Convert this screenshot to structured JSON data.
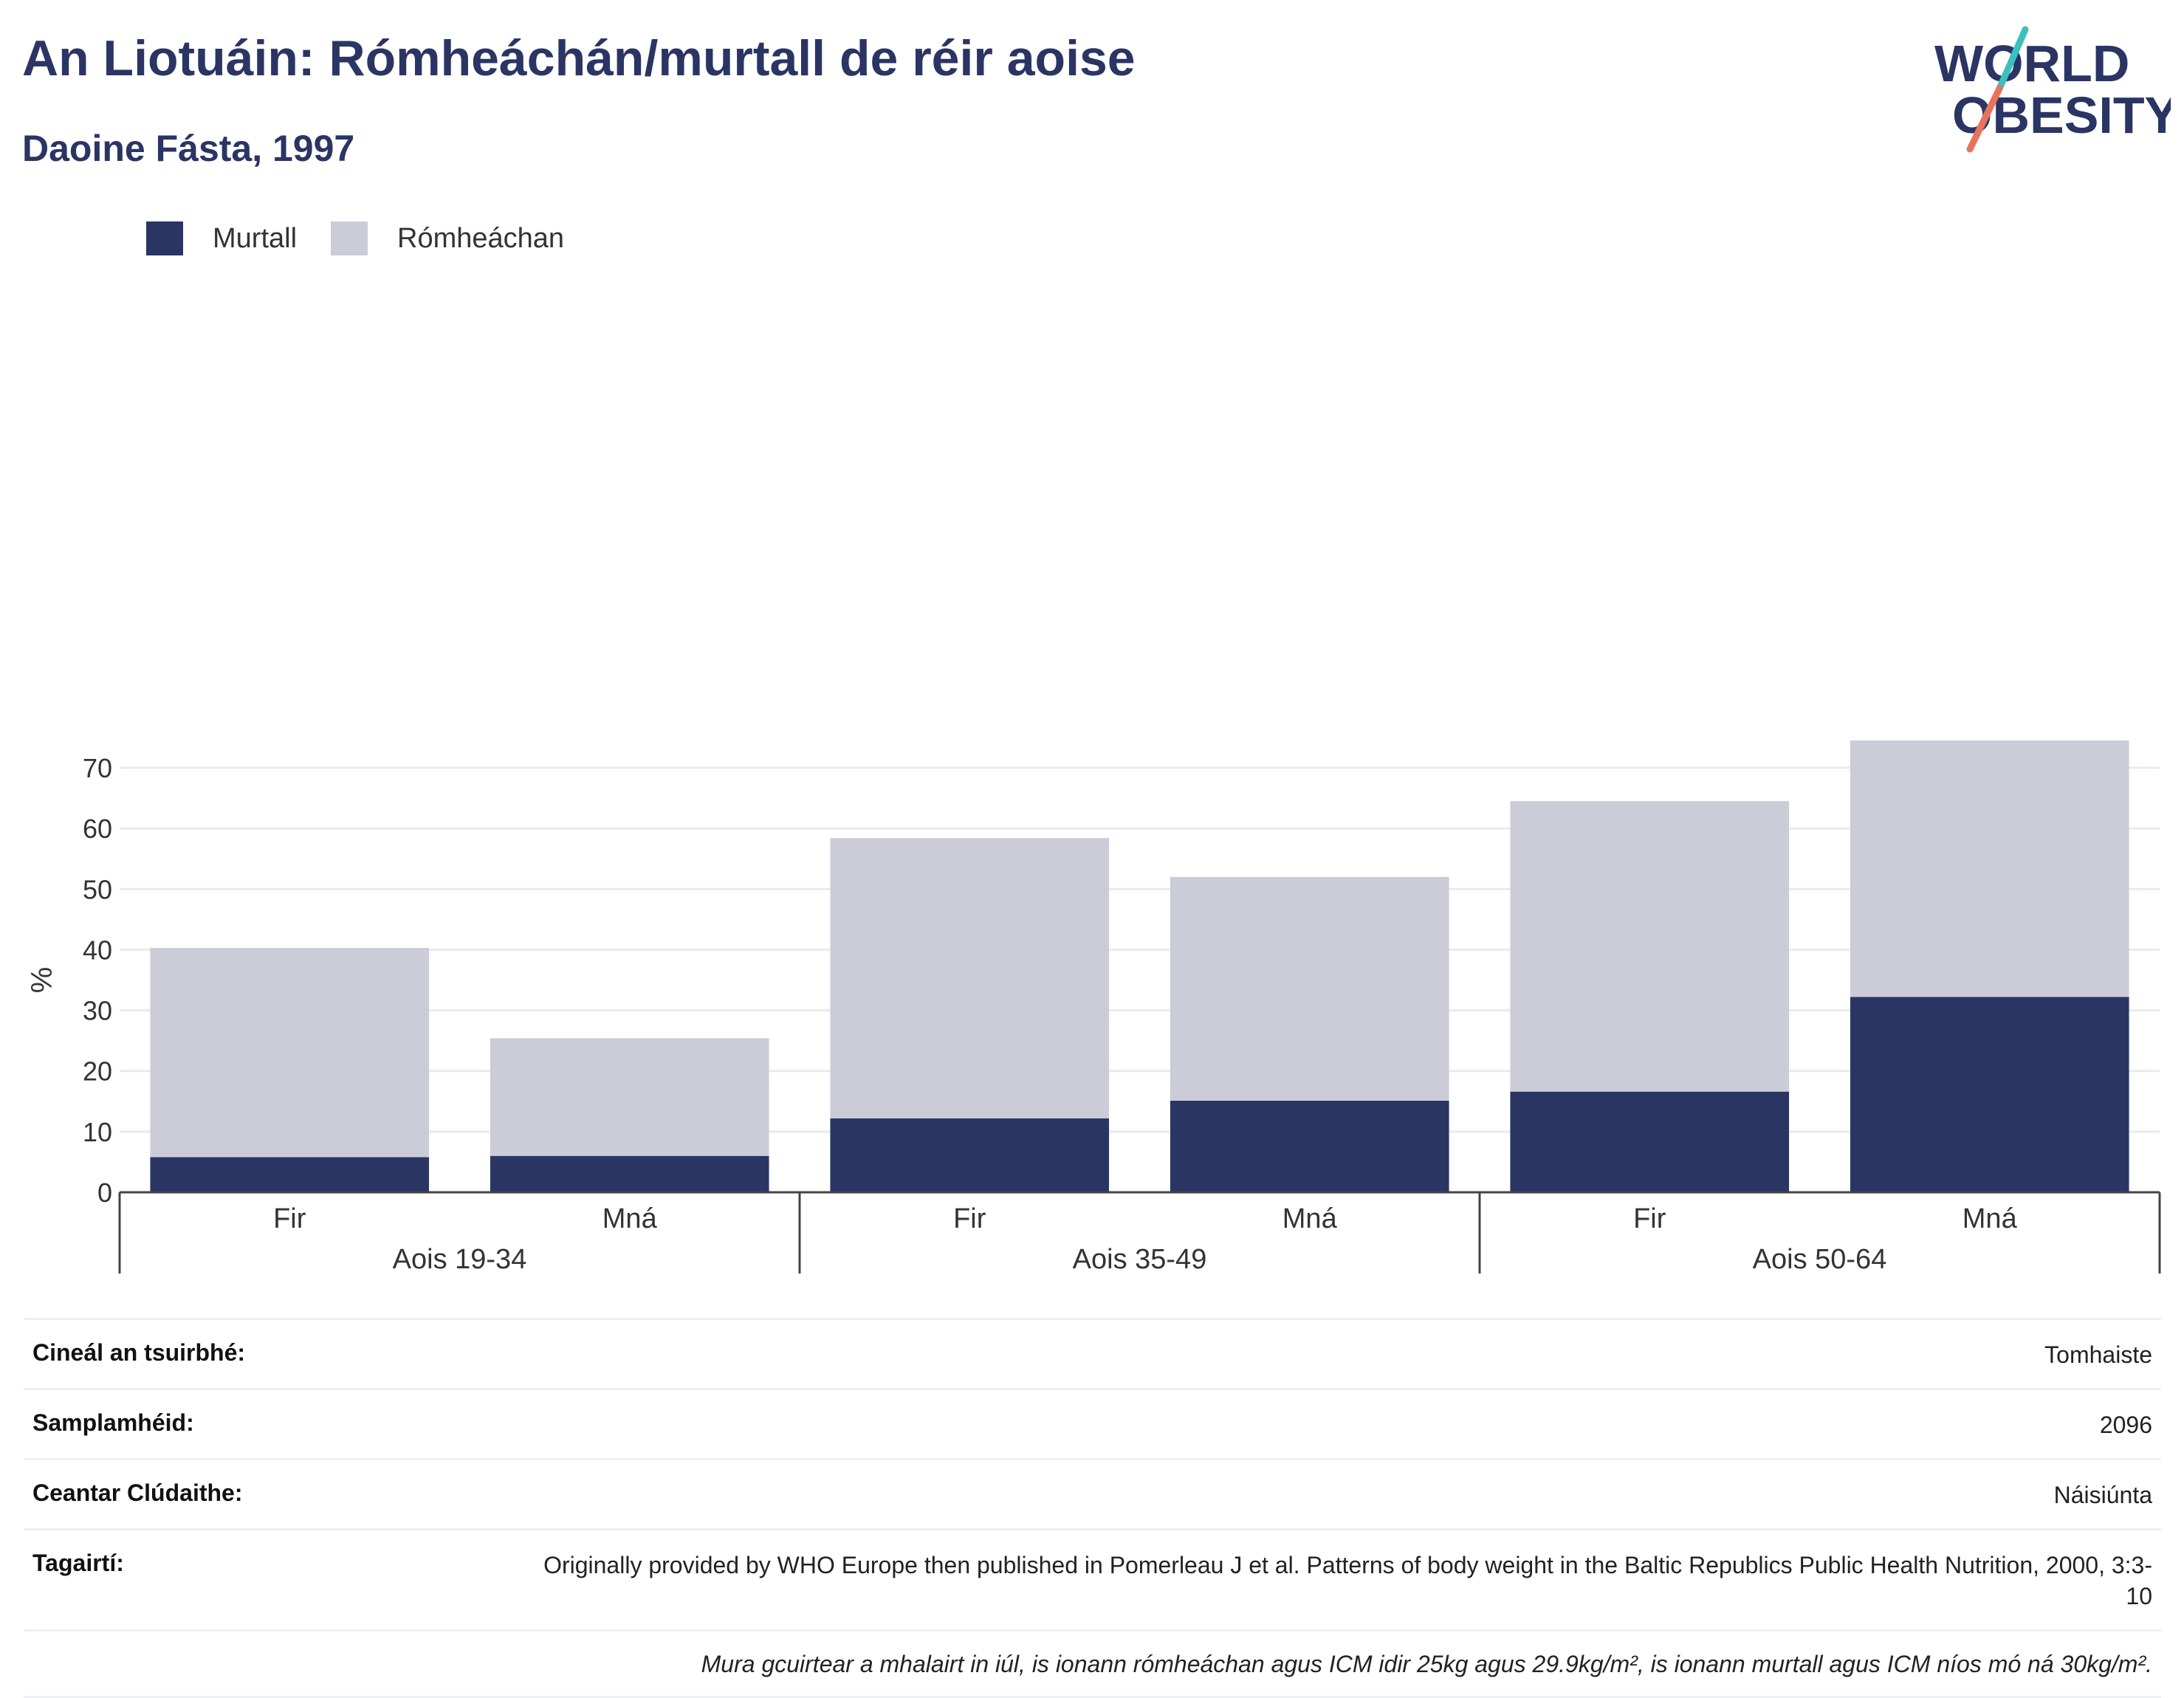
{
  "header": {
    "title": "An Liotuáin: Rómheáchán/murtall de réir aoise",
    "subtitle": "Daoine Fásta, 1997"
  },
  "logo": {
    "line1": "WORLD",
    "line2": "OBESITY",
    "name": "world-obesity-logo"
  },
  "colors": {
    "murtall": "#2a3564",
    "romheachan": "#cbccd8",
    "grid": "#e9eaf0",
    "title": "#2a3564",
    "logo_teal": "#3bbfbf",
    "logo_coral": "#e8735a"
  },
  "chart_data": {
    "type": "bar",
    "stacked": true,
    "ylabel": "%",
    "ylim": [
      0,
      75
    ],
    "yticks": [
      0,
      10,
      20,
      30,
      40,
      50,
      60,
      70
    ],
    "grid": true,
    "legend_position": "top-left",
    "categories": [
      "Fir",
      "Mná",
      "Fir",
      "Mná",
      "Fir",
      "Mná"
    ],
    "groups": [
      {
        "label": "Aois 19-34",
        "categories": [
          "Fir",
          "Mná"
        ]
      },
      {
        "label": "Aois 35-49",
        "categories": [
          "Fir",
          "Mná"
        ]
      },
      {
        "label": "Aois 50-64",
        "categories": [
          "Fir",
          "Mná"
        ]
      }
    ],
    "series": [
      {
        "name": "Murtall",
        "color": "#2a3564",
        "values": [
          5.8,
          6.0,
          12.2,
          15.1,
          16.6,
          32.2
        ]
      },
      {
        "name": "Rómheáchan",
        "color": "#cbccd8",
        "values": [
          34.5,
          19.4,
          46.2,
          36.9,
          47.9,
          42.3
        ]
      }
    ]
  },
  "info": {
    "rows": [
      {
        "label": "Cineál an tsuirbhé:",
        "value": "Tomhaiste"
      },
      {
        "label": "Samplamhéid:",
        "value": "2096"
      },
      {
        "label": "Ceantar Clúdaithe:",
        "value": "Náisiúnta"
      },
      {
        "label": "Tagairtí:",
        "value": "Originally provided by WHO Europe then published in Pomerleau J et al. Patterns of body weight in the Baltic Republics Public Health Nutrition, 2000, 3:3-10"
      }
    ],
    "note": "Mura gcuirtear a mhalairt in iúl, is ionann rómheáchan agus ICM idir 25kg agus 29.9kg/m², is ionann murtall agus ICM níos mó ná 30kg/m²."
  }
}
